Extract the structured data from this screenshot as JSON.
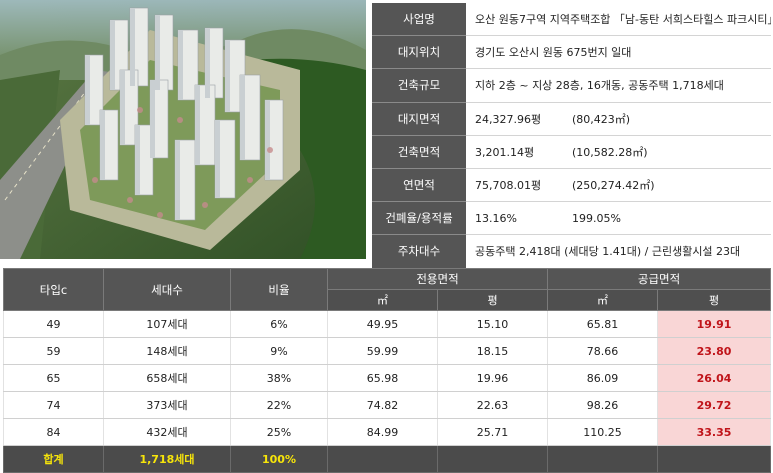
{
  "info": {
    "rows": [
      {
        "label": "사업명",
        "value": "오산 원동7구역 지역주택조합 「남-동탄 서희스타힐스 파크시티」",
        "value2": ""
      },
      {
        "label": "대지위치",
        "value": "경기도 오산시 원동 675번지 일대",
        "value2": ""
      },
      {
        "label": "건축규모",
        "value": "지하 2층 ~ 지상 28층, 16개동, 공동주택 1,718세대",
        "value2": ""
      },
      {
        "label": "대지면적",
        "value": "24,327.96평",
        "value2": "(80,423㎡)"
      },
      {
        "label": "건축면적",
        "value": "3,201.14평",
        "value2": "(10,582.28㎡)"
      },
      {
        "label": "연면적",
        "value": "75,708.01평",
        "value2": "(250,274.42㎡)"
      },
      {
        "label": "건폐율/용적률",
        "value": "13.16%",
        "value2": "199.05%"
      },
      {
        "label": "주차대수",
        "value": "공동주택 2,418대 (세대당 1.41대) / 근린생활시설 23대",
        "value2": ""
      }
    ]
  },
  "table": {
    "headers": {
      "type": "타입c",
      "units": "세대수",
      "ratio": "비율",
      "exclusive": "전용면적",
      "supply": "공급면적",
      "m2": "㎡",
      "pyeong": "평"
    },
    "rows": [
      {
        "type": "49",
        "units": "107세대",
        "ratio": "6%",
        "ex_m2": "49.95",
        "ex_py": "15.10",
        "sup_m2": "65.81",
        "sup_py": "19.91"
      },
      {
        "type": "59",
        "units": "148세대",
        "ratio": "9%",
        "ex_m2": "59.99",
        "ex_py": "18.15",
        "sup_m2": "78.66",
        "sup_py": "23.80"
      },
      {
        "type": "65",
        "units": "658세대",
        "ratio": "38%",
        "ex_m2": "65.98",
        "ex_py": "19.96",
        "sup_m2": "86.09",
        "sup_py": "26.04"
      },
      {
        "type": "74",
        "units": "373세대",
        "ratio": "22%",
        "ex_m2": "74.82",
        "ex_py": "22.63",
        "sup_m2": "98.26",
        "sup_py": "29.72"
      },
      {
        "type": "84",
        "units": "432세대",
        "ratio": "25%",
        "ex_m2": "84.99",
        "ex_py": "25.71",
        "sup_m2": "110.25",
        "sup_py": "33.35"
      }
    ],
    "total": {
      "label": "합계",
      "units": "1,718세대",
      "ratio": "100%"
    }
  },
  "colors": {
    "header_bg": "#555555",
    "highlight_bg": "#f9d6d6",
    "highlight_text": "#c0141a",
    "total_text": "#f7e50a"
  }
}
